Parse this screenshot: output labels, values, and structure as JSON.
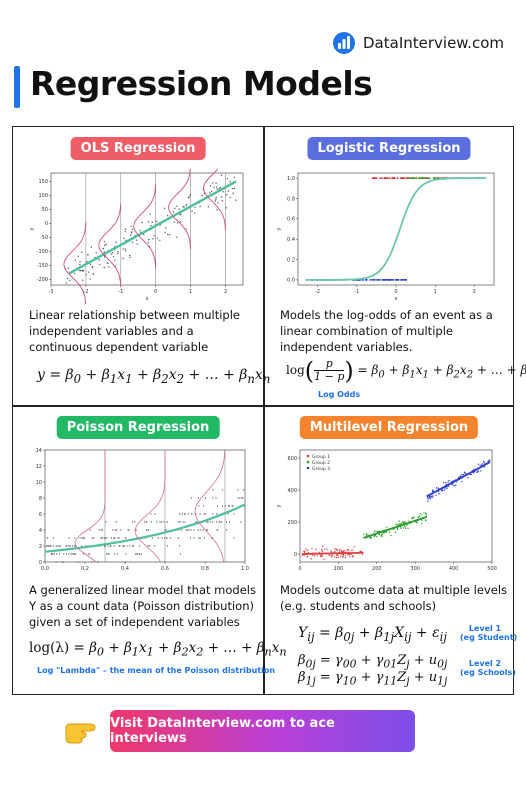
{
  "brand": {
    "name": "DataInterview.com",
    "logo_icon": "bar-chart-logo"
  },
  "page_title": "Regression Models",
  "panels": {
    "ols": {
      "title": "OLS Regression",
      "color": "#ef5d67",
      "description": "Linear relationship between multiple independent variables and a continuous dependent variable",
      "formula": "y = β0 + β1x1 + β2x2 + … + βnxn"
    },
    "logistic": {
      "title": "Logistic Regression",
      "color": "#5a6ee0",
      "description": "Models the log-odds of an event as a linear combination of multiple independent variables.",
      "formula": "log(p/(1−p)) = β0 + β1x1 + β2x2 + … + βnxn",
      "note": "Log Odds"
    },
    "poisson": {
      "title": "Poisson Regression",
      "color": "#22b866",
      "description": "A generalized linear model that models Y as a count data (Poisson distribution) given a set of independent variables",
      "formula": "log(λ) = β0 + β1x1 + β2x2 + … + βnxn",
      "note": "Log \"Lambda\" – the mean of the Poisson distribution"
    },
    "multilevel": {
      "title": "Multilevel Regression",
      "color": "#f4832e",
      "description": "Models outcome data at multiple levels (e.g. students and schools)",
      "formula_level1": "Yij = β0j + β1jXij + εij",
      "formula_level2a": "β0j = γ00 + γ01Zj + u0j",
      "formula_level2b": "β1j = γ10 + γ11Zj + u1j",
      "level1_label": "Level 1",
      "level1_sub": "(eg Student)",
      "level2_label": "Level 2",
      "level2_sub": "(eg Schools)"
    }
  },
  "chart_data": [
    {
      "type": "scatter",
      "xlabel": "x",
      "ylabel": "y",
      "xlim": [
        -3,
        2.5
      ],
      "ylim": [
        -220,
        180
      ],
      "xticks": [
        "-3",
        "-2",
        "-1",
        "0",
        "1",
        "2"
      ],
      "yticks": [
        "150",
        "100",
        "50",
        "0",
        "-50",
        "-100",
        "-150",
        "-200"
      ],
      "fit": {
        "x": [
          -2.5,
          2.3
        ],
        "y": [
          -180,
          150
        ]
      },
      "colors": {
        "points": "#555555",
        "fit": "#4fbf9f",
        "density": "#d05070"
      }
    },
    {
      "type": "scatter",
      "xlabel": "x",
      "ylabel": "y",
      "xlim": [
        -2.5,
        2.5
      ],
      "ylim": [
        -0.05,
        1.05
      ],
      "xticks": [
        "-2",
        "-1",
        "0",
        "1",
        "2"
      ],
      "yticks": [
        "1.0",
        "0.8",
        "0.6",
        "0.4",
        "0.2",
        "0.0"
      ],
      "colors": {
        "class1": "#d62728",
        "class0": "#1f3ecf",
        "curve": "#6cc7b2"
      }
    },
    {
      "type": "scatter",
      "xlim": [
        0,
        1
      ],
      "ylim": [
        0,
        14
      ],
      "xticks": [
        "0.0",
        "0.2",
        "0.4",
        "0.6",
        "0.8",
        "1.0"
      ],
      "yticks": [
        "14",
        "12",
        "10",
        "8",
        "6",
        "4",
        "2",
        "0"
      ],
      "colors": {
        "points": "#444444",
        "curve": "#4fbf9f",
        "density": "#d07090"
      }
    },
    {
      "type": "scatter",
      "ylabel": "y",
      "xlim": [
        0,
        500
      ],
      "ylim": [
        -50,
        650
      ],
      "xticks": [
        "0",
        "100",
        "200",
        "300",
        "400",
        "500"
      ],
      "yticks": [
        "600",
        "400",
        "200",
        "0"
      ],
      "series": [
        {
          "name": "Group 1",
          "color": "#e03c3c"
        },
        {
          "name": "Group 2",
          "color": "#2a9d2a"
        },
        {
          "name": "Group 3",
          "color": "#2b3fd1"
        }
      ]
    }
  ],
  "cta": {
    "label": "Visit DataInterview.com to ace interviews",
    "hand_icon": "pointing-hand-icon"
  }
}
